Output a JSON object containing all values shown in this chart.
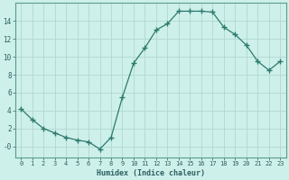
{
  "x": [
    0,
    1,
    2,
    3,
    4,
    5,
    6,
    7,
    8,
    9,
    10,
    11,
    12,
    13,
    14,
    15,
    16,
    17,
    18,
    19,
    20,
    21,
    22,
    23
  ],
  "y": [
    4.2,
    3.0,
    2.0,
    1.5,
    1.0,
    0.7,
    0.5,
    -0.3,
    1.0,
    5.5,
    9.3,
    11.0,
    13.0,
    13.7,
    15.1,
    15.1,
    15.1,
    15.0,
    13.3,
    12.5,
    11.3,
    9.5,
    8.5,
    9.5
  ],
  "line_color": "#2d7a6e",
  "marker": "+",
  "marker_size": 4,
  "bg_color": "#cef0ea",
  "grid_color_major": "#aed8d0",
  "grid_color_minor": "#c5e8e2",
  "xlabel": "Humidex (Indice chaleur)",
  "ylim": [
    -1.2,
    16.0
  ],
  "xlim": [
    -0.5,
    23.5
  ],
  "yticks": [
    0,
    2,
    4,
    6,
    8,
    10,
    12,
    14
  ],
  "ytick_labels": [
    "-0",
    "2",
    "4",
    "6",
    "8",
    "10",
    "12",
    "14"
  ],
  "xticks": [
    0,
    1,
    2,
    3,
    4,
    5,
    6,
    7,
    8,
    9,
    10,
    11,
    12,
    13,
    14,
    15,
    16,
    17,
    18,
    19,
    20,
    21,
    22,
    23
  ],
  "axis_color": "#5a9a90",
  "tick_color": "#2d6060",
  "label_color": "#2d6060"
}
